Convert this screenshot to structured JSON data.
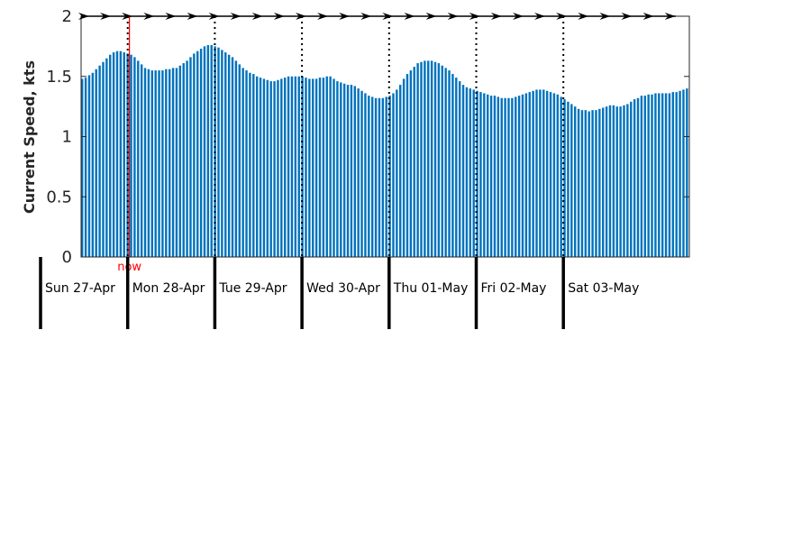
{
  "chart_data": {
    "type": "bar",
    "ylabel": "Current Speed, kts",
    "ylim": [
      0,
      2
    ],
    "yticks": [
      "0",
      "0.5",
      "1",
      "1.5",
      "2"
    ],
    "ytick_values": [
      0,
      0.5,
      1,
      1.5,
      2
    ],
    "days": [
      "Sun 27-Apr",
      "Mon 28-Apr",
      "Tue 29-Apr",
      "Wed 30-Apr",
      "Thu 01-May",
      "Fri 02-May",
      "Sat 03-May"
    ],
    "now_label": "now",
    "now_position_days": 1.02,
    "speed_hourly_kts": [
      1.48,
      1.49,
      1.51,
      1.53,
      1.56,
      1.59,
      1.62,
      1.65,
      1.68,
      1.7,
      1.71,
      1.71,
      1.7,
      1.69,
      1.68,
      1.66,
      1.63,
      1.6,
      1.57,
      1.56,
      1.55,
      1.55,
      1.55,
      1.55,
      1.56,
      1.56,
      1.57,
      1.57,
      1.59,
      1.61,
      1.63,
      1.66,
      1.69,
      1.71,
      1.73,
      1.75,
      1.76,
      1.76,
      1.75,
      1.74,
      1.72,
      1.7,
      1.68,
      1.66,
      1.63,
      1.6,
      1.57,
      1.55,
      1.53,
      1.52,
      1.5,
      1.49,
      1.48,
      1.47,
      1.46,
      1.46,
      1.47,
      1.48,
      1.49,
      1.5,
      1.5,
      1.5,
      1.5,
      1.5,
      1.49,
      1.48,
      1.48,
      1.48,
      1.49,
      1.49,
      1.5,
      1.5,
      1.48,
      1.46,
      1.45,
      1.44,
      1.43,
      1.43,
      1.42,
      1.4,
      1.38,
      1.36,
      1.34,
      1.33,
      1.32,
      1.32,
      1.32,
      1.33,
      1.34,
      1.36,
      1.39,
      1.43,
      1.48,
      1.52,
      1.55,
      1.58,
      1.61,
      1.62,
      1.63,
      1.63,
      1.63,
      1.62,
      1.61,
      1.59,
      1.57,
      1.55,
      1.52,
      1.49,
      1.46,
      1.43,
      1.41,
      1.4,
      1.39,
      1.38,
      1.37,
      1.36,
      1.35,
      1.34,
      1.34,
      1.33,
      1.32,
      1.32,
      1.32,
      1.32,
      1.33,
      1.34,
      1.35,
      1.36,
      1.37,
      1.38,
      1.39,
      1.39,
      1.39,
      1.38,
      1.37,
      1.36,
      1.35,
      1.33,
      1.31,
      1.29,
      1.27,
      1.25,
      1.23,
      1.22,
      1.22,
      1.21,
      1.22,
      1.22,
      1.23,
      1.24,
      1.25,
      1.26,
      1.26,
      1.25,
      1.25,
      1.26,
      1.27,
      1.29,
      1.31,
      1.32,
      1.34,
      1.34,
      1.35,
      1.35,
      1.36,
      1.36,
      1.36,
      1.36,
      1.36,
      1.37,
      1.37,
      1.38,
      1.39,
      1.4
    ],
    "grid": "vertical dotted at day boundaries",
    "bar_color": "#0072BD",
    "now_color": "#FF0000",
    "arrow_color": "#000000",
    "direction_arrows": "along top axis, pointing right"
  }
}
